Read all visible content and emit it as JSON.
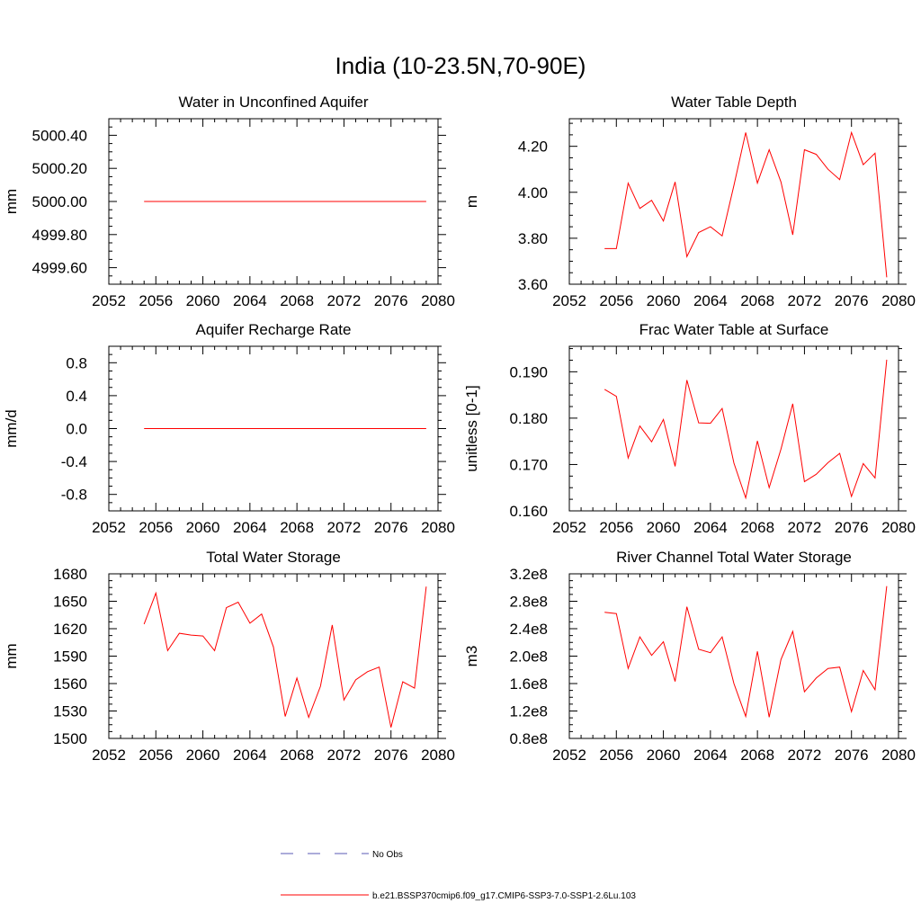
{
  "page_title": "India (10-23.5N,70-90E)",
  "colors": {
    "model_line": "#ff0000",
    "obs_line": "#5a5ab4",
    "axis": "#000000"
  },
  "legend": {
    "obs_label": "No Obs",
    "model_label": "b.e21.BSSP370cmip6.f09_g17.CMIP6-SSP3-7.0-SSP1-2.6Lu.103"
  },
  "chart_data": [
    {
      "type": "line",
      "title": "Water in Unconfined Aquifer",
      "ylabel": "mm",
      "xlim": [
        2052,
        2080
      ],
      "xticks": [
        "2052",
        "2056",
        "2060",
        "2064",
        "2068",
        "2072",
        "2076",
        "2080"
      ],
      "ylim": [
        4999.5,
        5000.5
      ],
      "yticks": [
        {
          "v": 4999.6,
          "label": "4999.60"
        },
        {
          "v": 4999.8,
          "label": "4999.80"
        },
        {
          "v": 5000.0,
          "label": "5000.00"
        },
        {
          "v": 5000.2,
          "label": "5000.20"
        },
        {
          "v": 5000.4,
          "label": "5000.40"
        }
      ],
      "series": [
        {
          "x": [
            2055,
            2079
          ],
          "y": [
            5000.0,
            5000.0
          ]
        }
      ]
    },
    {
      "type": "line",
      "title": "Water Table Depth",
      "ylabel": "m",
      "xlim": [
        2052,
        2080
      ],
      "xticks": [
        "2052",
        "2056",
        "2060",
        "2064",
        "2068",
        "2072",
        "2076",
        "2080"
      ],
      "ylim": [
        3.6,
        4.32
      ],
      "yticks": [
        {
          "v": 3.6,
          "label": "3.60"
        },
        {
          "v": 3.8,
          "label": "3.80"
        },
        {
          "v": 4.0,
          "label": "4.00"
        },
        {
          "v": 4.2,
          "label": "4.20"
        }
      ],
      "series": [
        {
          "x": [
            2055,
            2056,
            2057,
            2058,
            2059,
            2060,
            2061,
            2062,
            2063,
            2064,
            2065,
            2066,
            2067,
            2068,
            2069,
            2070,
            2071,
            2072,
            2073,
            2074,
            2075,
            2076,
            2077,
            2078,
            2079
          ],
          "y": [
            3.755,
            3.755,
            4.04,
            3.93,
            3.965,
            3.875,
            4.045,
            3.72,
            3.825,
            3.85,
            3.81,
            4.03,
            4.26,
            4.04,
            4.185,
            4.045,
            3.815,
            4.185,
            4.165,
            4.1,
            4.055,
            4.26,
            4.12,
            4.17,
            3.63
          ]
        }
      ]
    },
    {
      "type": "line",
      "title": "Aquifer Recharge Rate",
      "ylabel": "mm/d",
      "xlim": [
        2052,
        2080
      ],
      "xticks": [
        "2052",
        "2056",
        "2060",
        "2064",
        "2068",
        "2072",
        "2076",
        "2080"
      ],
      "ylim": [
        -1.0,
        1.0
      ],
      "yticks": [
        {
          "v": -0.8,
          "label": "-0.8"
        },
        {
          "v": -0.4,
          "label": "-0.4"
        },
        {
          "v": 0.0,
          "label": "0.0"
        },
        {
          "v": 0.4,
          "label": "0.4"
        },
        {
          "v": 0.8,
          "label": "0.8"
        }
      ],
      "series": [
        {
          "x": [
            2055,
            2079
          ],
          "y": [
            0.0,
            0.0
          ]
        }
      ]
    },
    {
      "type": "line",
      "title": "Frac Water Table at Surface",
      "ylabel": "unitless [0-1]",
      "xlim": [
        2052,
        2080
      ],
      "xticks": [
        "2052",
        "2056",
        "2060",
        "2064",
        "2068",
        "2072",
        "2076",
        "2080"
      ],
      "ylim": [
        0.16,
        0.1955
      ],
      "yticks": [
        {
          "v": 0.16,
          "label": "0.160"
        },
        {
          "v": 0.17,
          "label": "0.170"
        },
        {
          "v": 0.18,
          "label": "0.180"
        },
        {
          "v": 0.19,
          "label": "0.190"
        }
      ],
      "series": [
        {
          "x": [
            2055,
            2056,
            2057,
            2058,
            2059,
            2060,
            2061,
            2062,
            2063,
            2064,
            2065,
            2066,
            2067,
            2068,
            2069,
            2070,
            2071,
            2072,
            2073,
            2074,
            2075,
            2076,
            2077,
            2078,
            2079
          ],
          "y": [
            0.1862,
            0.1847,
            0.1714,
            0.1783,
            0.1749,
            0.1797,
            0.1696,
            0.1882,
            0.179,
            0.1789,
            0.1821,
            0.1703,
            0.1628,
            0.1751,
            0.165,
            0.1733,
            0.1831,
            0.1663,
            0.1679,
            0.1704,
            0.1724,
            0.1631,
            0.1702,
            0.1671,
            0.1926
          ]
        }
      ]
    },
    {
      "type": "line",
      "title": "Total Water Storage",
      "ylabel": "mm",
      "xlim": [
        2052,
        2080
      ],
      "xticks": [
        "2052",
        "2056",
        "2060",
        "2064",
        "2068",
        "2072",
        "2076",
        "2080"
      ],
      "ylim": [
        1500,
        1680
      ],
      "yticks": [
        {
          "v": 1500,
          "label": "1500"
        },
        {
          "v": 1530,
          "label": "1530"
        },
        {
          "v": 1560,
          "label": "1560"
        },
        {
          "v": 1590,
          "label": "1590"
        },
        {
          "v": 1620,
          "label": "1620"
        },
        {
          "v": 1650,
          "label": "1650"
        },
        {
          "v": 1680,
          "label": "1680"
        }
      ],
      "series": [
        {
          "x": [
            2055,
            2056,
            2057,
            2058,
            2059,
            2060,
            2061,
            2062,
            2063,
            2064,
            2065,
            2066,
            2067,
            2068,
            2069,
            2070,
            2071,
            2072,
            2073,
            2074,
            2075,
            2076,
            2077,
            2078,
            2079
          ],
          "y": [
            1625,
            1659,
            1596,
            1615,
            1613,
            1612,
            1596,
            1643,
            1649,
            1626,
            1636,
            1600,
            1524,
            1566,
            1523,
            1557,
            1624,
            1542,
            1564,
            1573,
            1578,
            1512,
            1562,
            1555,
            1666
          ]
        }
      ]
    },
    {
      "type": "line",
      "title": "River Channel Total Water Storage",
      "ylabel": "m3",
      "xlim": [
        2052,
        2080
      ],
      "xticks": [
        "2052",
        "2056",
        "2060",
        "2064",
        "2068",
        "2072",
        "2076",
        "2080"
      ],
      "ylim": [
        80000000,
        320000000
      ],
      "yticks": [
        {
          "v": 80000000,
          "label": "0.8e8"
        },
        {
          "v": 120000000,
          "label": "1.2e8"
        },
        {
          "v": 160000000,
          "label": "1.6e8"
        },
        {
          "v": 200000000,
          "label": "2.0e8"
        },
        {
          "v": 240000000,
          "label": "2.4e8"
        },
        {
          "v": 280000000,
          "label": "2.8e8"
        },
        {
          "v": 320000000,
          "label": "3.2e8"
        }
      ],
      "series": [
        {
          "x": [
            2055,
            2056,
            2057,
            2058,
            2059,
            2060,
            2061,
            2062,
            2063,
            2064,
            2065,
            2066,
            2067,
            2068,
            2069,
            2070,
            2071,
            2072,
            2073,
            2074,
            2075,
            2076,
            2077,
            2078,
            2079
          ],
          "y": [
            264000000,
            262000000,
            182000000,
            228000000,
            201000000,
            221000000,
            163000000,
            272000000,
            210000000,
            205000000,
            228000000,
            160000000,
            112000000,
            207000000,
            111000000,
            195000000,
            236000000,
            148000000,
            168000000,
            182000000,
            184000000,
            119000000,
            179000000,
            151000000,
            302000000
          ]
        }
      ]
    }
  ]
}
